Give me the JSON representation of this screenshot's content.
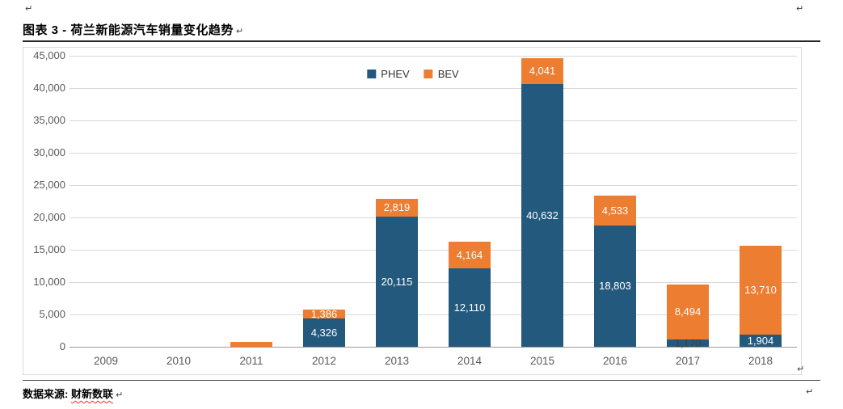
{
  "page": {
    "title": "图表 3 -  荷兰新能源汽车销量变化趋势",
    "paragraph_mark": "↵",
    "footer": {
      "prefix": "数据来源:",
      "source": "财新数联"
    }
  },
  "chart_data": {
    "type": "bar",
    "stacked": true,
    "categories": [
      "2009",
      "2010",
      "2011",
      "2012",
      "2013",
      "2014",
      "2015",
      "2016",
      "2017",
      "2018"
    ],
    "series": [
      {
        "name": "PHEV",
        "color": "#24597E",
        "values": [
          0,
          0,
          0,
          4326,
          20115,
          12110,
          40632,
          18803,
          1170,
          1904
        ]
      },
      {
        "name": "BEV",
        "color": "#ED7D31",
        "values": [
          0,
          0,
          800,
          1386,
          2819,
          4164,
          4041,
          4533,
          8494,
          13710
        ]
      }
    ],
    "ylim": [
      0,
      45000
    ],
    "ytick_step": 5000,
    "grid": true,
    "legend_position": "top-center",
    "label_min_value": 1000,
    "colors": {
      "gridline": "#d9d9d9",
      "axis_line": "#9a9a9a",
      "tick_label": "#595959",
      "data_label_light": "#ffffff",
      "data_label_dark": "#3f3f3f"
    }
  }
}
